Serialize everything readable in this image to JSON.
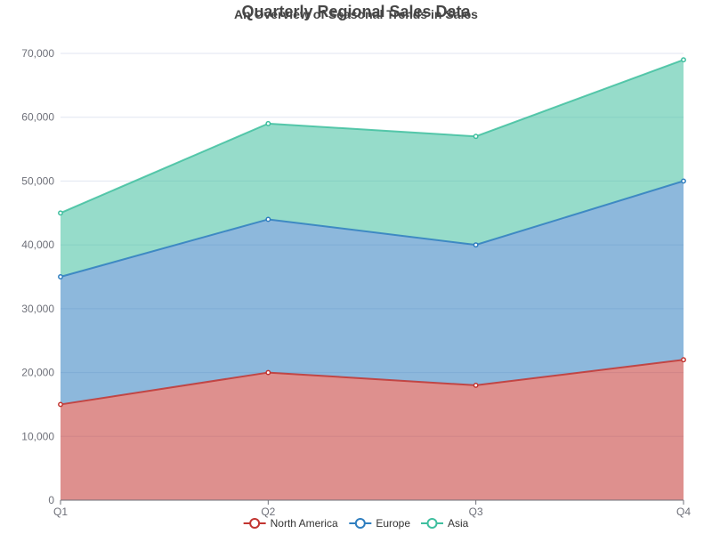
{
  "chart_data": {
    "type": "area",
    "stacked": true,
    "title": "Quarterly Regional Sales Data",
    "subtitle": "An Overview of Seasonal Trends in Sales",
    "categories": [
      "Q1",
      "Q2",
      "Q3",
      "Q4"
    ],
    "series": [
      {
        "name": "North America",
        "values": [
          15000,
          20000,
          18000,
          22000
        ],
        "color": "#c23531"
      },
      {
        "name": "Europe",
        "values": [
          20000,
          24000,
          22000,
          28000
        ],
        "color": "#2f7ebf"
      },
      {
        "name": "Asia",
        "values": [
          10000,
          15000,
          17000,
          19000
        ],
        "color": "#3fbf9f"
      }
    ],
    "ylim": [
      0,
      70000
    ],
    "yticks": [
      0,
      10000,
      20000,
      30000,
      40000,
      50000,
      60000,
      70000
    ],
    "ytick_labels": [
      "0",
      "10,000",
      "20,000",
      "30,000",
      "40,000",
      "50,000",
      "60,000",
      "70,000"
    ],
    "grid": true,
    "legend_position": "bottom-center",
    "xlabel": "",
    "ylabel": ""
  }
}
